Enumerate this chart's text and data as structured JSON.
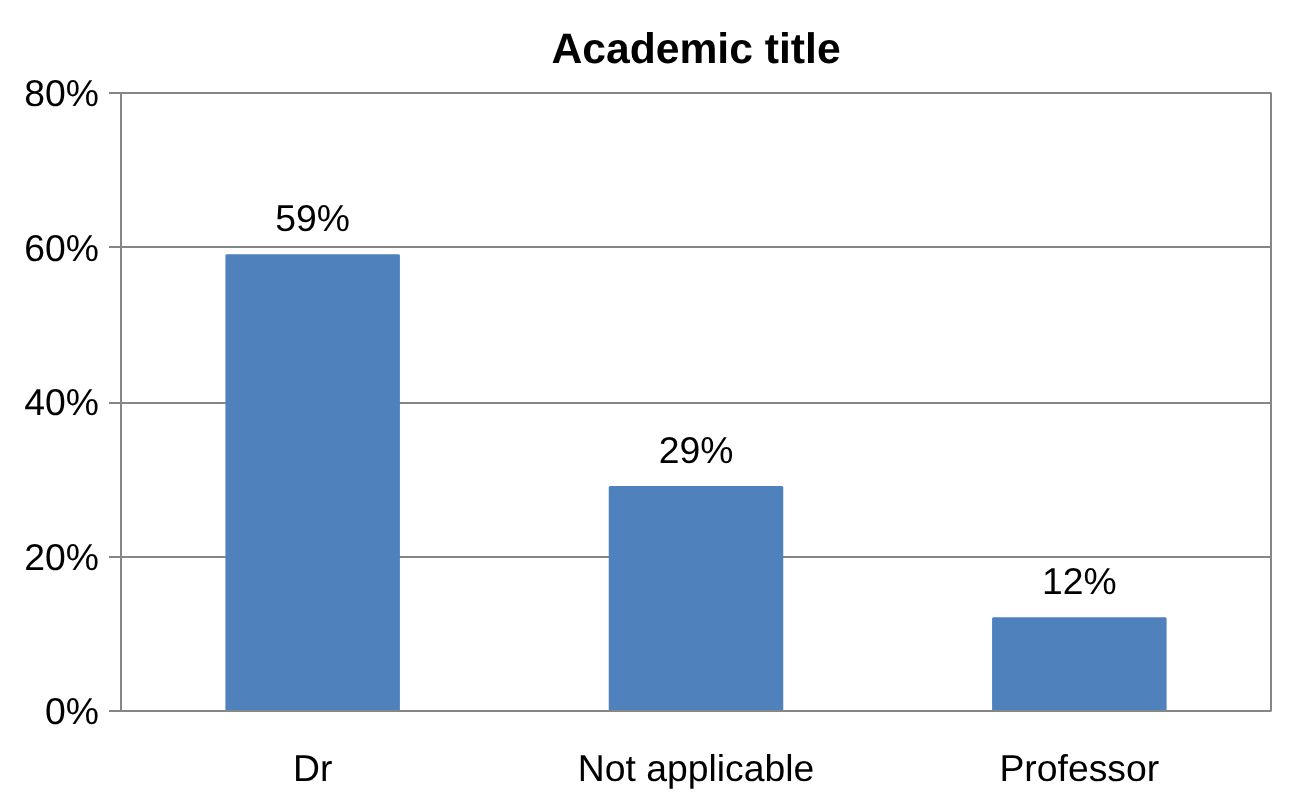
{
  "chart_data": {
    "type": "bar",
    "title": "Academic title",
    "categories": [
      "Dr",
      "Not applicable",
      "Professor"
    ],
    "values": [
      59,
      29,
      12
    ],
    "value_labels": [
      "59%",
      "29%",
      "12%"
    ],
    "color": "#4f81bd",
    "ylim": [
      0,
      80
    ],
    "yticks": [
      {
        "value": 0,
        "label": "0%"
      },
      {
        "value": 20,
        "label": "20%"
      },
      {
        "value": 40,
        "label": "40%"
      },
      {
        "value": 60,
        "label": "60%"
      },
      {
        "value": 80,
        "label": "80%"
      }
    ],
    "grid": "y"
  }
}
